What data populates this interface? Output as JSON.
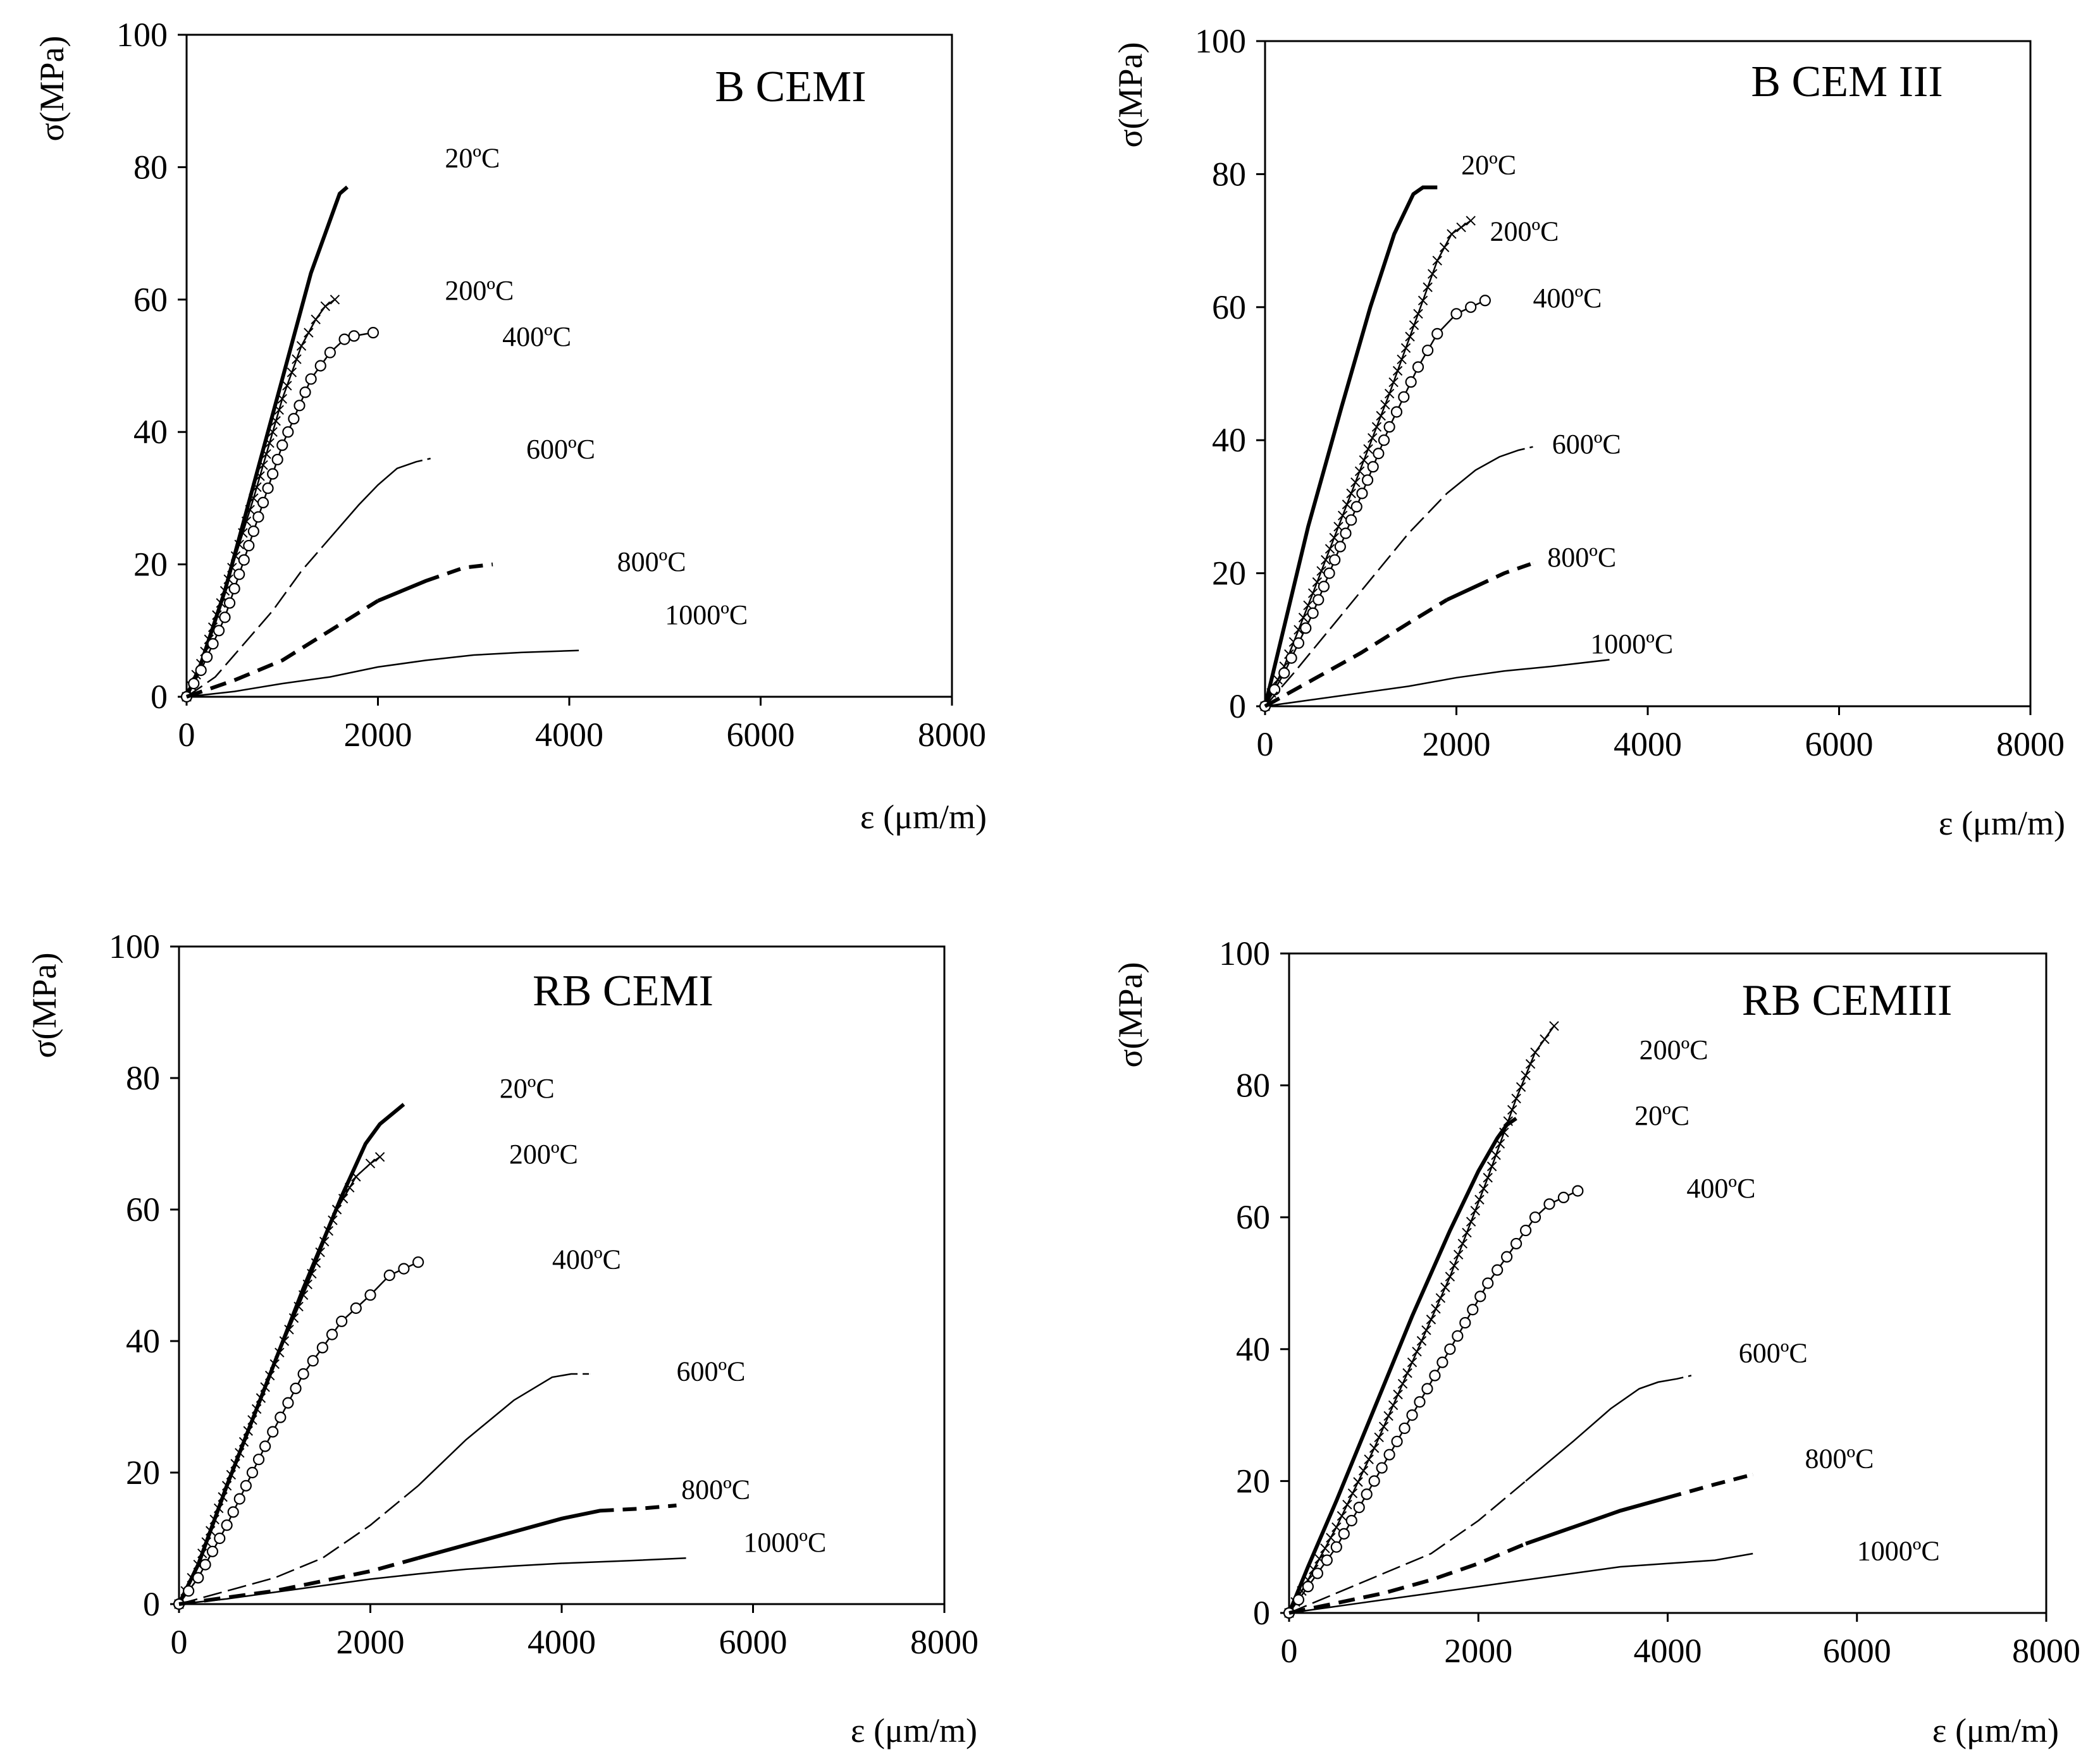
{
  "chart_data": [
    {
      "type": "line",
      "title": "B CEMI",
      "xlabel": "ε (μm/m)",
      "ylabel": "σ(MPa)",
      "xlim": [
        0,
        8000
      ],
      "ylim": [
        0,
        100
      ],
      "xticks": [
        "0",
        "2000",
        "4000",
        "6000",
        "8000"
      ],
      "yticks": [
        "0",
        "20",
        "40",
        "60",
        "80",
        "100"
      ],
      "grid": false,
      "series": [
        {
          "name": "20ºC",
          "style": "thick",
          "x": [
            0,
            150,
            400,
            700,
            1000,
            1300,
            1450,
            1550,
            1600,
            1680
          ],
          "y": [
            0,
            5,
            16,
            32,
            48,
            64,
            70,
            74,
            76,
            77
          ],
          "label_at": [
            2700,
            80
          ]
        },
        {
          "name": "200ºC",
          "style": "cross",
          "x": [
            0,
            150,
            400,
            700,
            1000,
            1200,
            1350,
            1450,
            1550
          ],
          "y": [
            0,
            5,
            16,
            30,
            45,
            53,
            57,
            59,
            60
          ],
          "label_at": [
            2700,
            60
          ]
        },
        {
          "name": "400ºC",
          "style": "circle",
          "x": [
            0,
            150,
            400,
            700,
            1000,
            1300,
            1500,
            1650,
            1750,
            1950
          ],
          "y": [
            0,
            4,
            12,
            25,
            38,
            48,
            52,
            54,
            54.5,
            55
          ],
          "label_at": [
            3300,
            53
          ]
        },
        {
          "name": "600ºC",
          "style": "thin-end-dashed",
          "x": [
            0,
            300,
            600,
            900,
            1200,
            1500,
            1800,
            2000,
            2200,
            2400,
            2550
          ],
          "y": [
            0,
            3,
            8,
            13,
            19,
            24,
            29,
            32,
            34.5,
            35.5,
            36
          ],
          "label_at": [
            3550,
            36
          ]
        },
        {
          "name": "800ºC",
          "style": "thick-end-dashed",
          "x": [
            0,
            500,
            1000,
            1500,
            2000,
            2500,
            2900,
            3200
          ],
          "y": [
            0,
            2.5,
            5.5,
            10,
            14.5,
            17.5,
            19.5,
            20
          ],
          "label_at": [
            4500,
            19
          ]
        },
        {
          "name": "1000ºC",
          "style": "thin",
          "x": [
            0,
            500,
            1000,
            1500,
            2000,
            2500,
            3000,
            3500,
            4100
          ],
          "y": [
            0,
            0.8,
            2,
            3,
            4.5,
            5.5,
            6.3,
            6.7,
            7
          ],
          "label_at": [
            5000,
            11
          ]
        }
      ]
    },
    {
      "type": "line",
      "title": "B  CEM III",
      "xlabel": "ε (μm/m)",
      "ylabel": "σ(MPa)",
      "xlim": [
        0,
        8000
      ],
      "ylim": [
        0,
        100
      ],
      "xticks": [
        "0",
        "2000",
        "4000",
        "6000",
        "8000"
      ],
      "yticks": [
        "0",
        "20",
        "40",
        "60",
        "80",
        "100"
      ],
      "grid": false,
      "series": [
        {
          "name": "20ºC",
          "style": "thick",
          "x": [
            0,
            200,
            450,
            800,
            1100,
            1350,
            1550,
            1650,
            1800
          ],
          "y": [
            0,
            12,
            27,
            45,
            60,
            71,
            77,
            78,
            78
          ],
          "label_at": [
            2050,
            80
          ]
        },
        {
          "name": "200ºC",
          "style": "cross",
          "x": [
            0,
            200,
            500,
            900,
            1300,
            1600,
            1800,
            1950,
            2150
          ],
          "y": [
            0,
            6,
            17,
            32,
            47,
            59,
            67,
            71,
            73
          ],
          "label_at": [
            2350,
            70
          ]
        },
        {
          "name": "400ºC",
          "style": "circle",
          "x": [
            0,
            200,
            500,
            900,
            1300,
            1600,
            1800,
            2000,
            2150,
            2300
          ],
          "y": [
            0,
            5,
            14,
            28,
            42,
            51,
            56,
            59,
            60,
            61
          ],
          "label_at": [
            2800,
            60
          ]
        },
        {
          "name": "600ºC",
          "style": "thin-end-dashed",
          "x": [
            0,
            300,
            700,
            1100,
            1500,
            1900,
            2200,
            2450,
            2650,
            2800
          ],
          "y": [
            0,
            5,
            12,
            19,
            26,
            32,
            35.5,
            37.5,
            38.5,
            39
          ],
          "label_at": [
            3000,
            38
          ]
        },
        {
          "name": "800ºC",
          "style": "thick-end-dashed",
          "x": [
            0,
            500,
            1000,
            1500,
            1900,
            2200,
            2500,
            2800
          ],
          "y": [
            0,
            4,
            8,
            12.5,
            16,
            18,
            20,
            21.5
          ],
          "label_at": [
            2950,
            21
          ]
        },
        {
          "name": "1000ºC",
          "style": "thin",
          "x": [
            0,
            500,
            1000,
            1500,
            2000,
            2500,
            3000,
            3600
          ],
          "y": [
            0,
            1,
            2,
            3,
            4.3,
            5.3,
            6,
            7
          ],
          "label_at": [
            3400,
            8
          ]
        }
      ]
    },
    {
      "type": "line",
      "title": "RB   CEMI",
      "xlabel": "ε (μm/m)",
      "ylabel": "σ(MPa)",
      "xlim": [
        0,
        8000
      ],
      "ylim": [
        0,
        100
      ],
      "xticks": [
        "0",
        "2000",
        "4000",
        "6000",
        "8000"
      ],
      "yticks": [
        "0",
        "20",
        "40",
        "60",
        "80",
        "100"
      ],
      "grid": false,
      "series": [
        {
          "name": "20ºC",
          "style": "thick",
          "x": [
            0,
            200,
            500,
            900,
            1300,
            1700,
            1950,
            2100,
            2350
          ],
          "y": [
            0,
            6,
            18,
            33,
            48,
            62,
            70,
            73,
            76
          ],
          "label_at": [
            3350,
            77
          ]
        },
        {
          "name": "200ºC",
          "style": "cross",
          "x": [
            0,
            200,
            500,
            900,
            1300,
            1650,
            1850,
            2000,
            2100
          ],
          "y": [
            0,
            6,
            18,
            33,
            47,
            60,
            65,
            67,
            68
          ],
          "label_at": [
            3450,
            67
          ]
        },
        {
          "name": "400ºC",
          "style": "circle",
          "x": [
            0,
            200,
            500,
            900,
            1300,
            1700,
            2000,
            2200,
            2350,
            2500
          ],
          "y": [
            0,
            4,
            12,
            24,
            35,
            43,
            47,
            50,
            51,
            52
          ],
          "label_at": [
            3900,
            51
          ]
        },
        {
          "name": "600ºC",
          "style": "thin-end-dashed",
          "x": [
            0,
            500,
            1000,
            1500,
            2000,
            2500,
            3000,
            3500,
            3900,
            4100,
            4300
          ],
          "y": [
            0,
            2,
            4,
            7,
            12,
            18,
            25,
            31,
            34.5,
            35,
            35
          ],
          "label_at": [
            5200,
            34
          ]
        },
        {
          "name": "800ºC",
          "style": "thick-end-dashed",
          "x": [
            0,
            500,
            1000,
            1500,
            2000,
            2500,
            3000,
            3500,
            4000,
            4400,
            4800,
            5200
          ],
          "y": [
            0,
            1,
            2,
            3.5,
            5,
            7,
            9,
            11,
            13,
            14.2,
            14.5,
            15
          ],
          "label_at": [
            5250,
            16
          ]
        },
        {
          "name": "1000ºC",
          "style": "thin",
          "x": [
            0,
            500,
            1000,
            1500,
            2000,
            2500,
            3000,
            3500,
            4000,
            4700,
            5300
          ],
          "y": [
            0,
            0.8,
            1.8,
            2.8,
            3.8,
            4.6,
            5.3,
            5.8,
            6.2,
            6.6,
            7
          ],
          "label_at": [
            5900,
            8
          ]
        }
      ]
    },
    {
      "type": "line",
      "title": "RB    CEMIII",
      "xlabel": "ε (μm/m)",
      "ylabel": "σ(MPa)",
      "xlim": [
        0,
        8000
      ],
      "ylim": [
        0,
        100
      ],
      "xticks": [
        "0",
        "2000",
        "4000",
        "6000",
        "8000"
      ],
      "yticks": [
        "0",
        "20",
        "40",
        "60",
        "80",
        "100"
      ],
      "grid": false,
      "series": [
        {
          "name": "20ºC",
          "style": "thick",
          "x": [
            0,
            200,
            500,
            900,
            1300,
            1700,
            2000,
            2200,
            2300,
            2400
          ],
          "y": [
            0,
            7,
            17,
            31,
            45,
            58,
            67,
            72,
            74,
            75
          ],
          "label_at": [
            3650,
            74
          ]
        },
        {
          "name": "200ºC",
          "style": "cross",
          "x": [
            0,
            200,
            500,
            900,
            1300,
            1700,
            2100,
            2400,
            2600,
            2800
          ],
          "y": [
            0,
            5,
            13,
            25,
            38,
            51,
            66,
            78,
            85,
            89
          ],
          "label_at": [
            3700,
            84
          ]
        },
        {
          "name": "400ºC",
          "style": "circle",
          "x": [
            0,
            200,
            500,
            900,
            1300,
            1700,
            2100,
            2400,
            2600,
            2750,
            2900,
            3050
          ],
          "y": [
            0,
            4,
            10,
            20,
            30,
            40,
            50,
            56,
            60,
            62,
            63,
            64
          ],
          "label_at": [
            4200,
            63
          ]
        },
        {
          "name": "600ºC",
          "style": "thin-end-dashed",
          "x": [
            0,
            500,
            1000,
            1500,
            2000,
            2500,
            3000,
            3400,
            3700,
            3900,
            4100,
            4250
          ],
          "y": [
            0,
            3,
            6,
            9,
            14,
            20,
            26,
            31,
            34,
            35,
            35.5,
            36
          ],
          "label_at": [
            4750,
            38
          ]
        },
        {
          "name": "800ºC",
          "style": "thick-end-dashed",
          "x": [
            0,
            500,
            1000,
            1500,
            2000,
            2500,
            3000,
            3500,
            4000,
            4500,
            4900
          ],
          "y": [
            0,
            1.5,
            3,
            5,
            7.5,
            10.5,
            13,
            15.5,
            17.5,
            19.5,
            21
          ],
          "label_at": [
            5450,
            22
          ]
        },
        {
          "name": "1000ºC",
          "style": "thin",
          "x": [
            0,
            500,
            1000,
            1500,
            2000,
            2500,
            3000,
            3500,
            4000,
            4500,
            4900
          ],
          "y": [
            0,
            1,
            2,
            3,
            4,
            5,
            6,
            7,
            7.5,
            8,
            9
          ],
          "label_at": [
            6000,
            8
          ]
        }
      ]
    }
  ]
}
